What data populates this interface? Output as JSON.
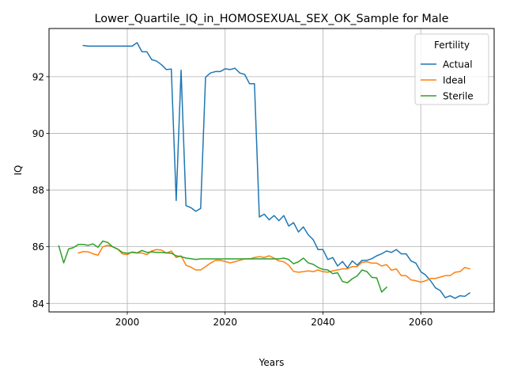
{
  "chart_data": {
    "type": "line",
    "title": "Lower_Quartile_IQ_in_HOMOSEXUAL_SEX_OK_Sample for Male",
    "xlabel": "Years",
    "ylabel": "IQ",
    "xlim": [
      1984,
      2075
    ],
    "ylim": [
      83.7,
      93.7
    ],
    "xticks": [
      2000,
      2020,
      2040,
      2060
    ],
    "yticks": [
      84,
      86,
      88,
      90,
      92
    ],
    "grid": true,
    "legend": {
      "title": "Fertility",
      "placement": "top-right"
    },
    "series": [
      {
        "name": "Actual",
        "color": "#1f77b4",
        "points": [
          [
            1991,
            93.1
          ],
          [
            1992,
            93.08
          ],
          [
            1993,
            93.08
          ],
          [
            1994,
            93.08
          ],
          [
            1995,
            93.08
          ],
          [
            1996,
            93.08
          ],
          [
            1997,
            93.08
          ],
          [
            1998,
            93.08
          ],
          [
            1999,
            93.08
          ],
          [
            2000,
            93.08
          ],
          [
            2001,
            93.08
          ],
          [
            2002,
            93.2
          ],
          [
            2003,
            92.88
          ],
          [
            2004,
            92.88
          ],
          [
            2005,
            92.6
          ],
          [
            2006,
            92.55
          ],
          [
            2007,
            92.42
          ],
          [
            2008,
            92.25
          ],
          [
            2009,
            92.27
          ],
          [
            2010,
            87.63
          ],
          [
            2011,
            92.23
          ],
          [
            2012,
            87.45
          ],
          [
            2013,
            87.38
          ],
          [
            2014,
            87.25
          ],
          [
            2015,
            87.35
          ],
          [
            2016,
            91.98
          ],
          [
            2017,
            92.13
          ],
          [
            2018,
            92.18
          ],
          [
            2019,
            92.18
          ],
          [
            2020,
            92.28
          ],
          [
            2021,
            92.25
          ],
          [
            2022,
            92.3
          ],
          [
            2023,
            92.13
          ],
          [
            2024,
            92.08
          ],
          [
            2025,
            91.75
          ],
          [
            2026,
            91.75
          ],
          [
            2027,
            87.05
          ],
          [
            2028,
            87.15
          ],
          [
            2029,
            86.95
          ],
          [
            2030,
            87.1
          ],
          [
            2031,
            86.92
          ],
          [
            2032,
            87.1
          ],
          [
            2033,
            86.73
          ],
          [
            2034,
            86.85
          ],
          [
            2035,
            86.52
          ],
          [
            2036,
            86.7
          ],
          [
            2037,
            86.42
          ],
          [
            2038,
            86.25
          ],
          [
            2039,
            85.9
          ],
          [
            2040,
            85.9
          ],
          [
            2041,
            85.55
          ],
          [
            2042,
            85.62
          ],
          [
            2043,
            85.32
          ],
          [
            2044,
            85.48
          ],
          [
            2045,
            85.25
          ],
          [
            2046,
            85.5
          ],
          [
            2047,
            85.35
          ],
          [
            2048,
            85.52
          ],
          [
            2049,
            85.52
          ],
          [
            2050,
            85.58
          ],
          [
            2051,
            85.68
          ],
          [
            2052,
            85.75
          ],
          [
            2053,
            85.85
          ],
          [
            2054,
            85.8
          ],
          [
            2055,
            85.9
          ],
          [
            2056,
            85.75
          ],
          [
            2057,
            85.75
          ],
          [
            2058,
            85.5
          ],
          [
            2059,
            85.42
          ],
          [
            2060,
            85.12
          ],
          [
            2061,
            85.0
          ],
          [
            2062,
            84.8
          ],
          [
            2063,
            84.55
          ],
          [
            2064,
            84.45
          ],
          [
            2065,
            84.2
          ],
          [
            2066,
            84.27
          ],
          [
            2067,
            84.18
          ],
          [
            2068,
            84.27
          ],
          [
            2069,
            84.25
          ],
          [
            2070,
            84.37
          ]
        ]
      },
      {
        "name": "Ideal",
        "color": "#ff7f0e",
        "points": [
          [
            1990,
            85.78
          ],
          [
            1991,
            85.83
          ],
          [
            1992,
            85.82
          ],
          [
            1993,
            85.75
          ],
          [
            1994,
            85.7
          ],
          [
            1995,
            86.0
          ],
          [
            1996,
            86.05
          ],
          [
            1997,
            86.0
          ],
          [
            1998,
            85.92
          ],
          [
            1999,
            85.75
          ],
          [
            2000,
            85.72
          ],
          [
            2001,
            85.82
          ],
          [
            2002,
            85.78
          ],
          [
            2003,
            85.78
          ],
          [
            2004,
            85.72
          ],
          [
            2005,
            85.85
          ],
          [
            2006,
            85.9
          ],
          [
            2007,
            85.88
          ],
          [
            2008,
            85.78
          ],
          [
            2009,
            85.85
          ],
          [
            2010,
            85.62
          ],
          [
            2011,
            85.68
          ],
          [
            2012,
            85.35
          ],
          [
            2013,
            85.28
          ],
          [
            2014,
            85.18
          ],
          [
            2015,
            85.18
          ],
          [
            2016,
            85.3
          ],
          [
            2017,
            85.42
          ],
          [
            2018,
            85.52
          ],
          [
            2019,
            85.52
          ],
          [
            2020,
            85.48
          ],
          [
            2021,
            85.43
          ],
          [
            2022,
            85.47
          ],
          [
            2023,
            85.52
          ],
          [
            2024,
            85.57
          ],
          [
            2025,
            85.57
          ],
          [
            2026,
            85.62
          ],
          [
            2027,
            85.65
          ],
          [
            2028,
            85.62
          ],
          [
            2029,
            85.68
          ],
          [
            2030,
            85.6
          ],
          [
            2031,
            85.5
          ],
          [
            2032,
            85.47
          ],
          [
            2033,
            85.35
          ],
          [
            2034,
            85.13
          ],
          [
            2035,
            85.1
          ],
          [
            2036,
            85.12
          ],
          [
            2037,
            85.15
          ],
          [
            2038,
            85.12
          ],
          [
            2039,
            85.18
          ],
          [
            2040,
            85.12
          ],
          [
            2041,
            85.1
          ],
          [
            2042,
            85.15
          ],
          [
            2043,
            85.18
          ],
          [
            2044,
            85.22
          ],
          [
            2045,
            85.22
          ],
          [
            2046,
            85.3
          ],
          [
            2047,
            85.3
          ],
          [
            2048,
            85.45
          ],
          [
            2049,
            85.47
          ],
          [
            2050,
            85.42
          ],
          [
            2051,
            85.42
          ],
          [
            2052,
            85.32
          ],
          [
            2053,
            85.37
          ],
          [
            2054,
            85.17
          ],
          [
            2055,
            85.22
          ],
          [
            2056,
            84.98
          ],
          [
            2057,
            84.98
          ],
          [
            2058,
            84.83
          ],
          [
            2059,
            84.8
          ],
          [
            2060,
            84.75
          ],
          [
            2061,
            84.8
          ],
          [
            2062,
            84.88
          ],
          [
            2063,
            84.88
          ],
          [
            2064,
            84.93
          ],
          [
            2065,
            84.98
          ],
          [
            2066,
            84.98
          ],
          [
            2067,
            85.1
          ],
          [
            2068,
            85.12
          ],
          [
            2069,
            85.27
          ],
          [
            2070,
            85.22
          ]
        ]
      },
      {
        "name": "Sterile",
        "color": "#2ca02c",
        "points": [
          [
            1986,
            86.03
          ],
          [
            1987,
            85.43
          ],
          [
            1988,
            85.92
          ],
          [
            1989,
            85.97
          ],
          [
            1990,
            86.08
          ],
          [
            1991,
            86.08
          ],
          [
            1992,
            86.05
          ],
          [
            1993,
            86.1
          ],
          [
            1994,
            85.98
          ],
          [
            1995,
            86.2
          ],
          [
            1996,
            86.15
          ],
          [
            1997,
            86.0
          ],
          [
            1998,
            85.92
          ],
          [
            1999,
            85.8
          ],
          [
            2000,
            85.77
          ],
          [
            2001,
            85.8
          ],
          [
            2002,
            85.78
          ],
          [
            2003,
            85.87
          ],
          [
            2004,
            85.8
          ],
          [
            2005,
            85.82
          ],
          [
            2006,
            85.8
          ],
          [
            2007,
            85.8
          ],
          [
            2008,
            85.78
          ],
          [
            2009,
            85.77
          ],
          [
            2010,
            85.68
          ],
          [
            2011,
            85.65
          ],
          [
            2012,
            85.6
          ],
          [
            2013,
            85.58
          ],
          [
            2014,
            85.55
          ],
          [
            2015,
            85.57
          ],
          [
            2016,
            85.57
          ],
          [
            2017,
            85.57
          ],
          [
            2018,
            85.57
          ],
          [
            2019,
            85.57
          ],
          [
            2020,
            85.57
          ],
          [
            2021,
            85.57
          ],
          [
            2022,
            85.57
          ],
          [
            2023,
            85.57
          ],
          [
            2024,
            85.57
          ],
          [
            2025,
            85.57
          ],
          [
            2026,
            85.57
          ],
          [
            2027,
            85.57
          ],
          [
            2028,
            85.57
          ],
          [
            2029,
            85.57
          ],
          [
            2030,
            85.57
          ],
          [
            2031,
            85.57
          ],
          [
            2032,
            85.6
          ],
          [
            2033,
            85.55
          ],
          [
            2034,
            85.4
          ],
          [
            2035,
            85.47
          ],
          [
            2036,
            85.6
          ],
          [
            2037,
            85.43
          ],
          [
            2038,
            85.38
          ],
          [
            2039,
            85.27
          ],
          [
            2040,
            85.2
          ],
          [
            2041,
            85.18
          ],
          [
            2042,
            85.05
          ],
          [
            2043,
            85.08
          ],
          [
            2044,
            84.77
          ],
          [
            2045,
            84.73
          ],
          [
            2046,
            84.87
          ],
          [
            2047,
            84.97
          ],
          [
            2048,
            85.18
          ],
          [
            2049,
            85.12
          ],
          [
            2050,
            84.92
          ],
          [
            2051,
            84.9
          ],
          [
            2052,
            84.4
          ],
          [
            2053,
            84.57
          ]
        ]
      }
    ]
  }
}
